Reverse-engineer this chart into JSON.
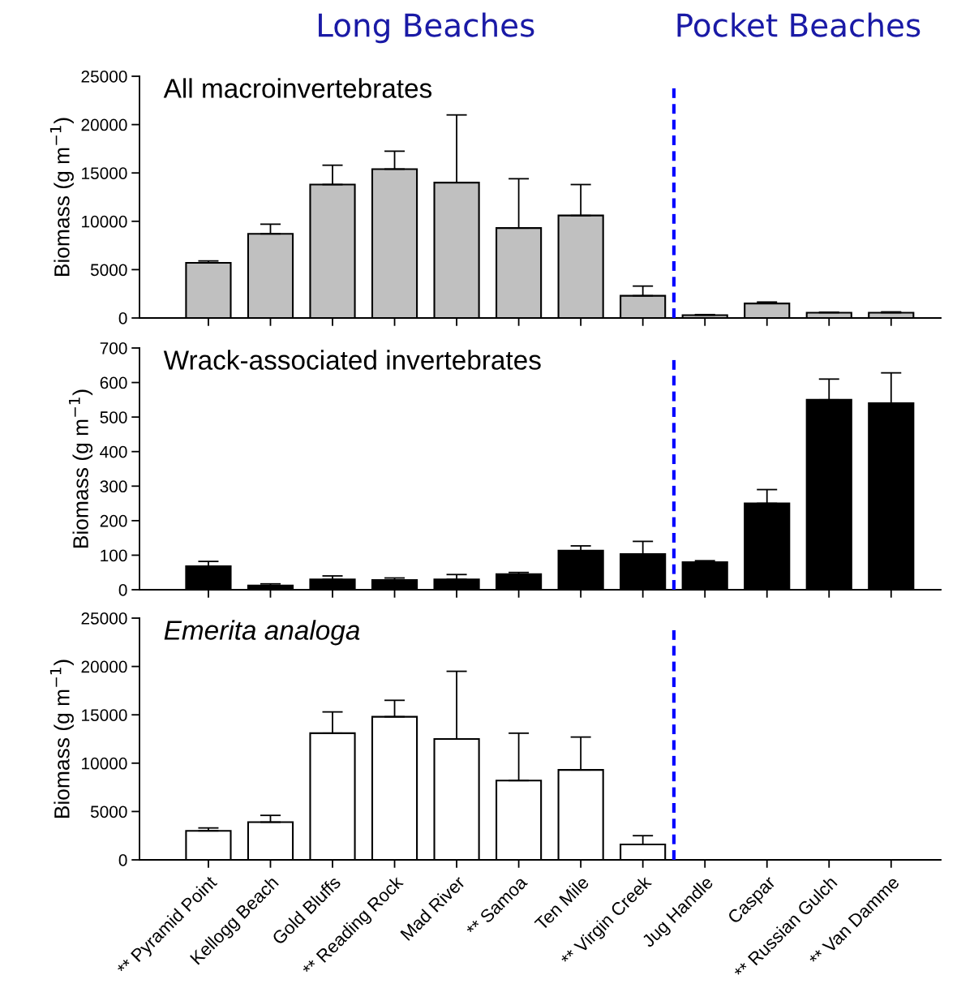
{
  "chart_data": [
    {
      "type": "bar",
      "title": "All macroinvertebrates",
      "ylabel": "Biomass (g m$^{−1}$)",
      "categories": [
        null,
        null,
        null,
        null,
        null,
        null,
        null,
        null,
        null,
        null,
        null,
        null
      ],
      "values": [
        5700,
        8700,
        13800,
        15400,
        14000,
        9300,
        10600,
        2300,
        300,
        1500,
        550,
        550
      ],
      "errors": [
        200,
        1000,
        2000,
        1850,
        7000,
        5100,
        3200,
        1000,
        50,
        150,
        50,
        80
      ],
      "color": "#c0c0c0",
      "ylim": [
        0,
        25000
      ],
      "yticks": [
        0,
        5000,
        10000,
        15000,
        20000,
        25000
      ],
      "grid": false,
      "tick_labels": "y",
      "annotations": [
        "Long Beaches",
        "Pocket Beaches"
      ]
    },
    {
      "type": "bar",
      "title": "Wrack-associated invertebrates",
      "ylabel": "Biomass (g m$^{−1}$)",
      "categories": [
        null,
        null,
        null,
        null,
        null,
        null,
        null,
        null,
        null,
        null,
        null,
        null
      ],
      "values": [
        68,
        12,
        30,
        28,
        30,
        45,
        113,
        103,
        80,
        250,
        550,
        540
      ],
      "errors": [
        14,
        5,
        10,
        6,
        14,
        5,
        14,
        37,
        4,
        40,
        60,
        88
      ],
      "color": "#000000",
      "ylim": [
        0,
        700
      ],
      "yticks": [
        0,
        100,
        200,
        300,
        400,
        500,
        600,
        700
      ],
      "grid": false,
      "tick_labels": "y"
    },
    {
      "type": "bar",
      "title": "Emerita analoga",
      "ylabel": "Biomass (g m$^{−1}$)",
      "categories": [
        "** Pyramid Point",
        "Kellogg Beach",
        "Gold Bluffs",
        "** Reading Rock",
        "Mad River",
        "** Samoa",
        "Ten Mile",
        "** Virgin Creek",
        "Jug Handle",
        "Caspar",
        "** Russian Gulch",
        "** Van Damme"
      ],
      "values": [
        3000,
        3900,
        13100,
        14800,
        12500,
        8200,
        9300,
        1600,
        null,
        null,
        null,
        null
      ],
      "errors": [
        300,
        700,
        2200,
        1700,
        7000,
        4900,
        3400,
        900,
        null,
        null,
        null,
        null
      ],
      "color": "#ffffff",
      "ylim": [
        0,
        25000
      ],
      "yticks": [
        0,
        5000,
        10000,
        15000,
        20000,
        25000
      ],
      "grid": false
    }
  ]
}
